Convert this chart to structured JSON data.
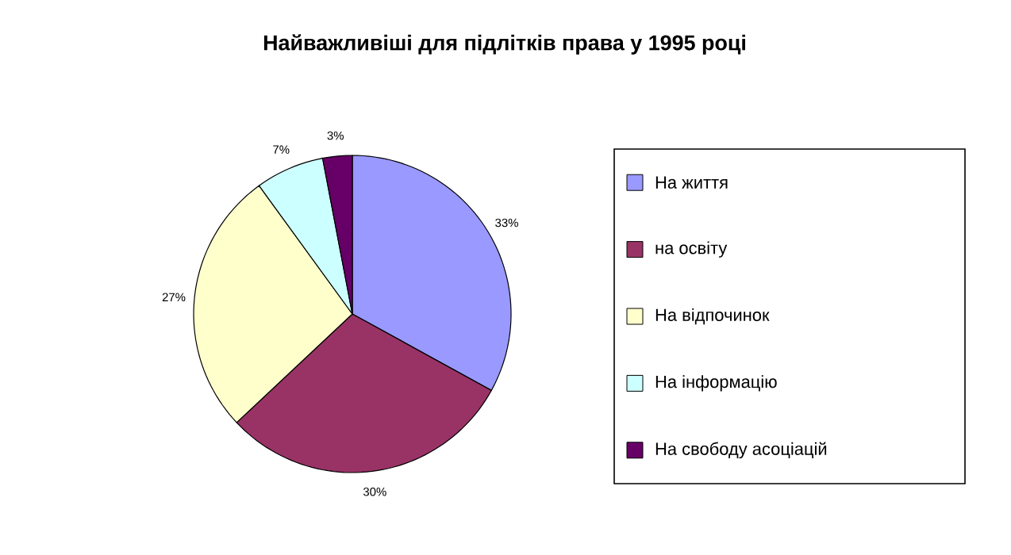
{
  "chart_data": {
    "type": "pie",
    "title": "Найважливіші для підлітків права у 1995 році",
    "categories": [
      "На життя",
      "на освіту",
      "На відпочинок",
      "На інформацію",
      "На свободу асоціацій"
    ],
    "values": [
      33,
      30,
      27,
      7,
      3
    ],
    "value_labels": [
      "33%",
      "30%",
      "27%",
      "7%",
      "3%"
    ],
    "colors": [
      "#9999ff",
      "#993366",
      "#ffffcc",
      "#ccffff",
      "#660066"
    ],
    "legend": "right"
  }
}
